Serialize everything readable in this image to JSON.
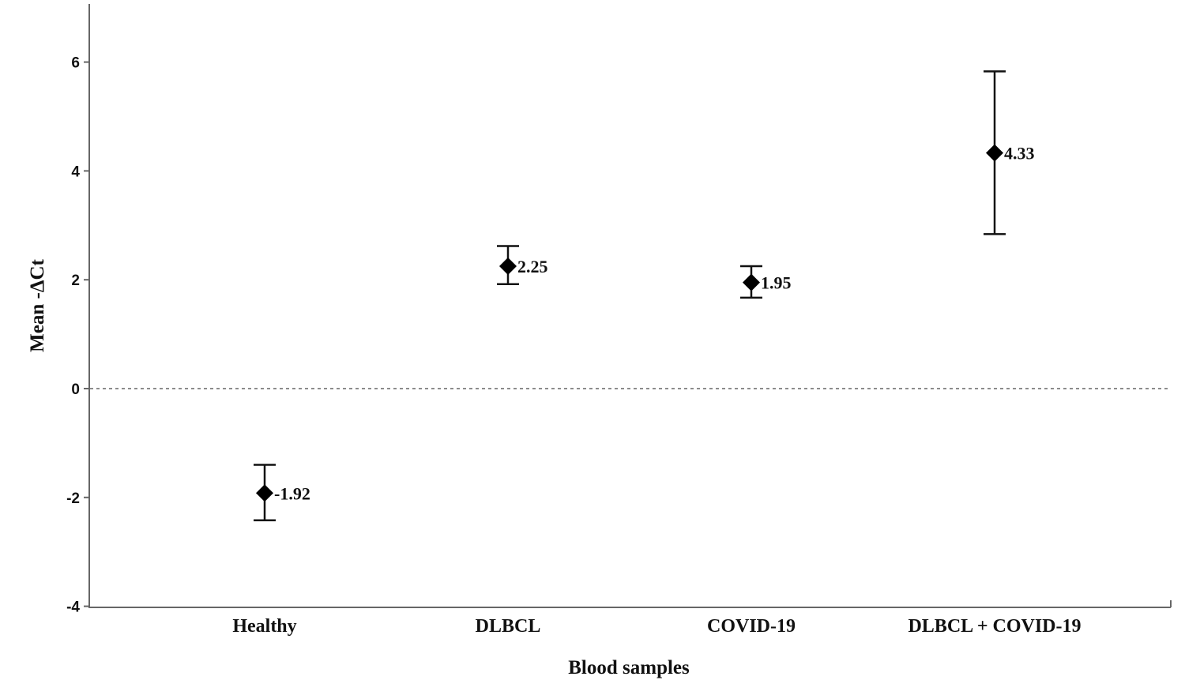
{
  "chart_data": {
    "type": "scatter",
    "xlabel": "Blood samples",
    "ylabel": "Mean -ΔCt",
    "ylim": [
      -4,
      7.1
    ],
    "yticks": [
      -4,
      -2,
      0,
      2,
      4,
      6
    ],
    "reference_line": 0,
    "grid": false,
    "categories": [
      "Healthy",
      "DLBCL",
      "COVID-19",
      "DLBCL + COVID-19"
    ],
    "values": [
      -1.92,
      2.25,
      1.95,
      4.33
    ],
    "error_low": [
      -2.42,
      1.92,
      1.67,
      2.84
    ],
    "error_high": [
      -1.4,
      2.62,
      2.25,
      5.83
    ],
    "data_labels": [
      "-1.92",
      "2.25",
      "1.95",
      "4.33"
    ]
  }
}
